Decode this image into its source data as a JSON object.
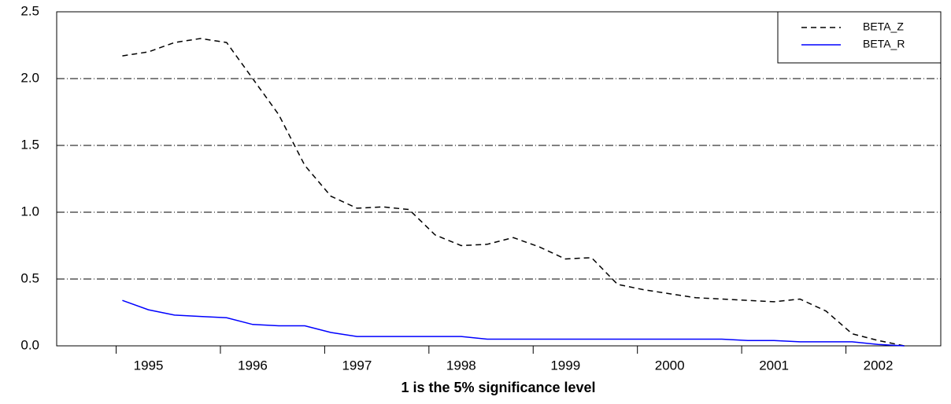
{
  "chart_data": {
    "type": "line",
    "xlabel": "1 is the 5% significance level",
    "x": [
      1994.75,
      1995.0,
      1995.25,
      1995.5,
      1995.75,
      1996.0,
      1996.25,
      1996.5,
      1996.75,
      1997.0,
      1997.25,
      1997.5,
      1997.75,
      1998.0,
      1998.25,
      1998.5,
      1998.75,
      1999.0,
      1999.25,
      1999.5,
      1999.75,
      2000.0,
      2000.25,
      2000.5,
      2000.75,
      2001.0,
      2001.25,
      2001.5,
      2001.75,
      2002.0,
      2002.25
    ],
    "series": [
      {
        "name": "BETA_Z",
        "color": "#000000",
        "dash": true,
        "values": [
          2.17,
          2.2,
          2.27,
          2.3,
          2.27,
          2.0,
          1.73,
          1.35,
          1.12,
          1.03,
          1.04,
          1.02,
          0.83,
          0.75,
          0.76,
          0.81,
          0.74,
          0.65,
          0.66,
          0.46,
          0.42,
          0.39,
          0.36,
          0.35,
          0.34,
          0.33,
          0.35,
          0.26,
          0.09,
          0.04,
          0.0
        ]
      },
      {
        "name": "BETA_R",
        "color": "#0000ff",
        "dash": false,
        "values": [
          0.34,
          0.27,
          0.23,
          0.22,
          0.21,
          0.16,
          0.15,
          0.15,
          0.1,
          0.07,
          0.07,
          0.07,
          0.07,
          0.07,
          0.05,
          0.05,
          0.05,
          0.05,
          0.05,
          0.05,
          0.05,
          0.05,
          0.05,
          0.05,
          0.04,
          0.04,
          0.03,
          0.03,
          0.03,
          0.01,
          0.0
        ]
      }
    ],
    "xlim": [
      1994.12,
      2002.6
    ],
    "xticks": [
      1995,
      1996,
      1997,
      1998,
      1999,
      2000,
      2001,
      2002
    ],
    "ylim": [
      0,
      2.5
    ],
    "yticks": [
      {
        "value": 0,
        "label": "0.0"
      },
      0.5,
      {
        "value": 1,
        "label": "1.0"
      },
      1.5,
      {
        "value": 2,
        "label": "2.0"
      },
      2.5
    ],
    "grid": true,
    "legend": "upper right"
  }
}
